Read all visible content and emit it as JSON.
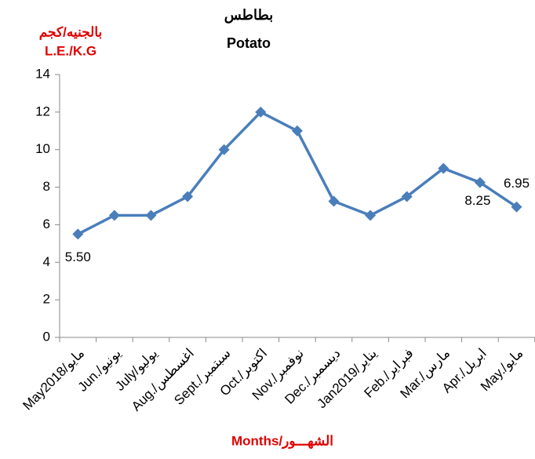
{
  "chart_data": {
    "type": "line",
    "title": "بطاطس",
    "subtitle": "Potato",
    "y_label": "بالجنيه/كجم",
    "y_label_en": "L.E./K.G",
    "x_label": "Months/الشهـــور",
    "categories": [
      "May2018/مايو",
      "Jun./يونيو",
      "July/يوليو",
      "Aug./اغسطس",
      "Sept./سبتمبر",
      "Oct./اكتوبر",
      "Nov./نوفمبر",
      "Dec./ديسمبر",
      "Jan2019/يناير",
      "Feb./فبراير",
      "Mar./مارس",
      "Apr./ابريل",
      "May./مايو"
    ],
    "values": [
      5.5,
      6.5,
      6.5,
      7.5,
      10,
      12,
      11,
      7.25,
      6.5,
      7.5,
      9,
      8.25,
      6.95
    ],
    "value_labels": [
      "5.50",
      null,
      null,
      null,
      null,
      null,
      null,
      null,
      null,
      null,
      null,
      "8.25",
      "6.95"
    ],
    "color": "#4a7ebb",
    "ylim": [
      0,
      14
    ],
    "yticks": [
      0,
      2,
      4,
      6,
      8,
      10,
      12,
      14
    ],
    "grid": false
  }
}
